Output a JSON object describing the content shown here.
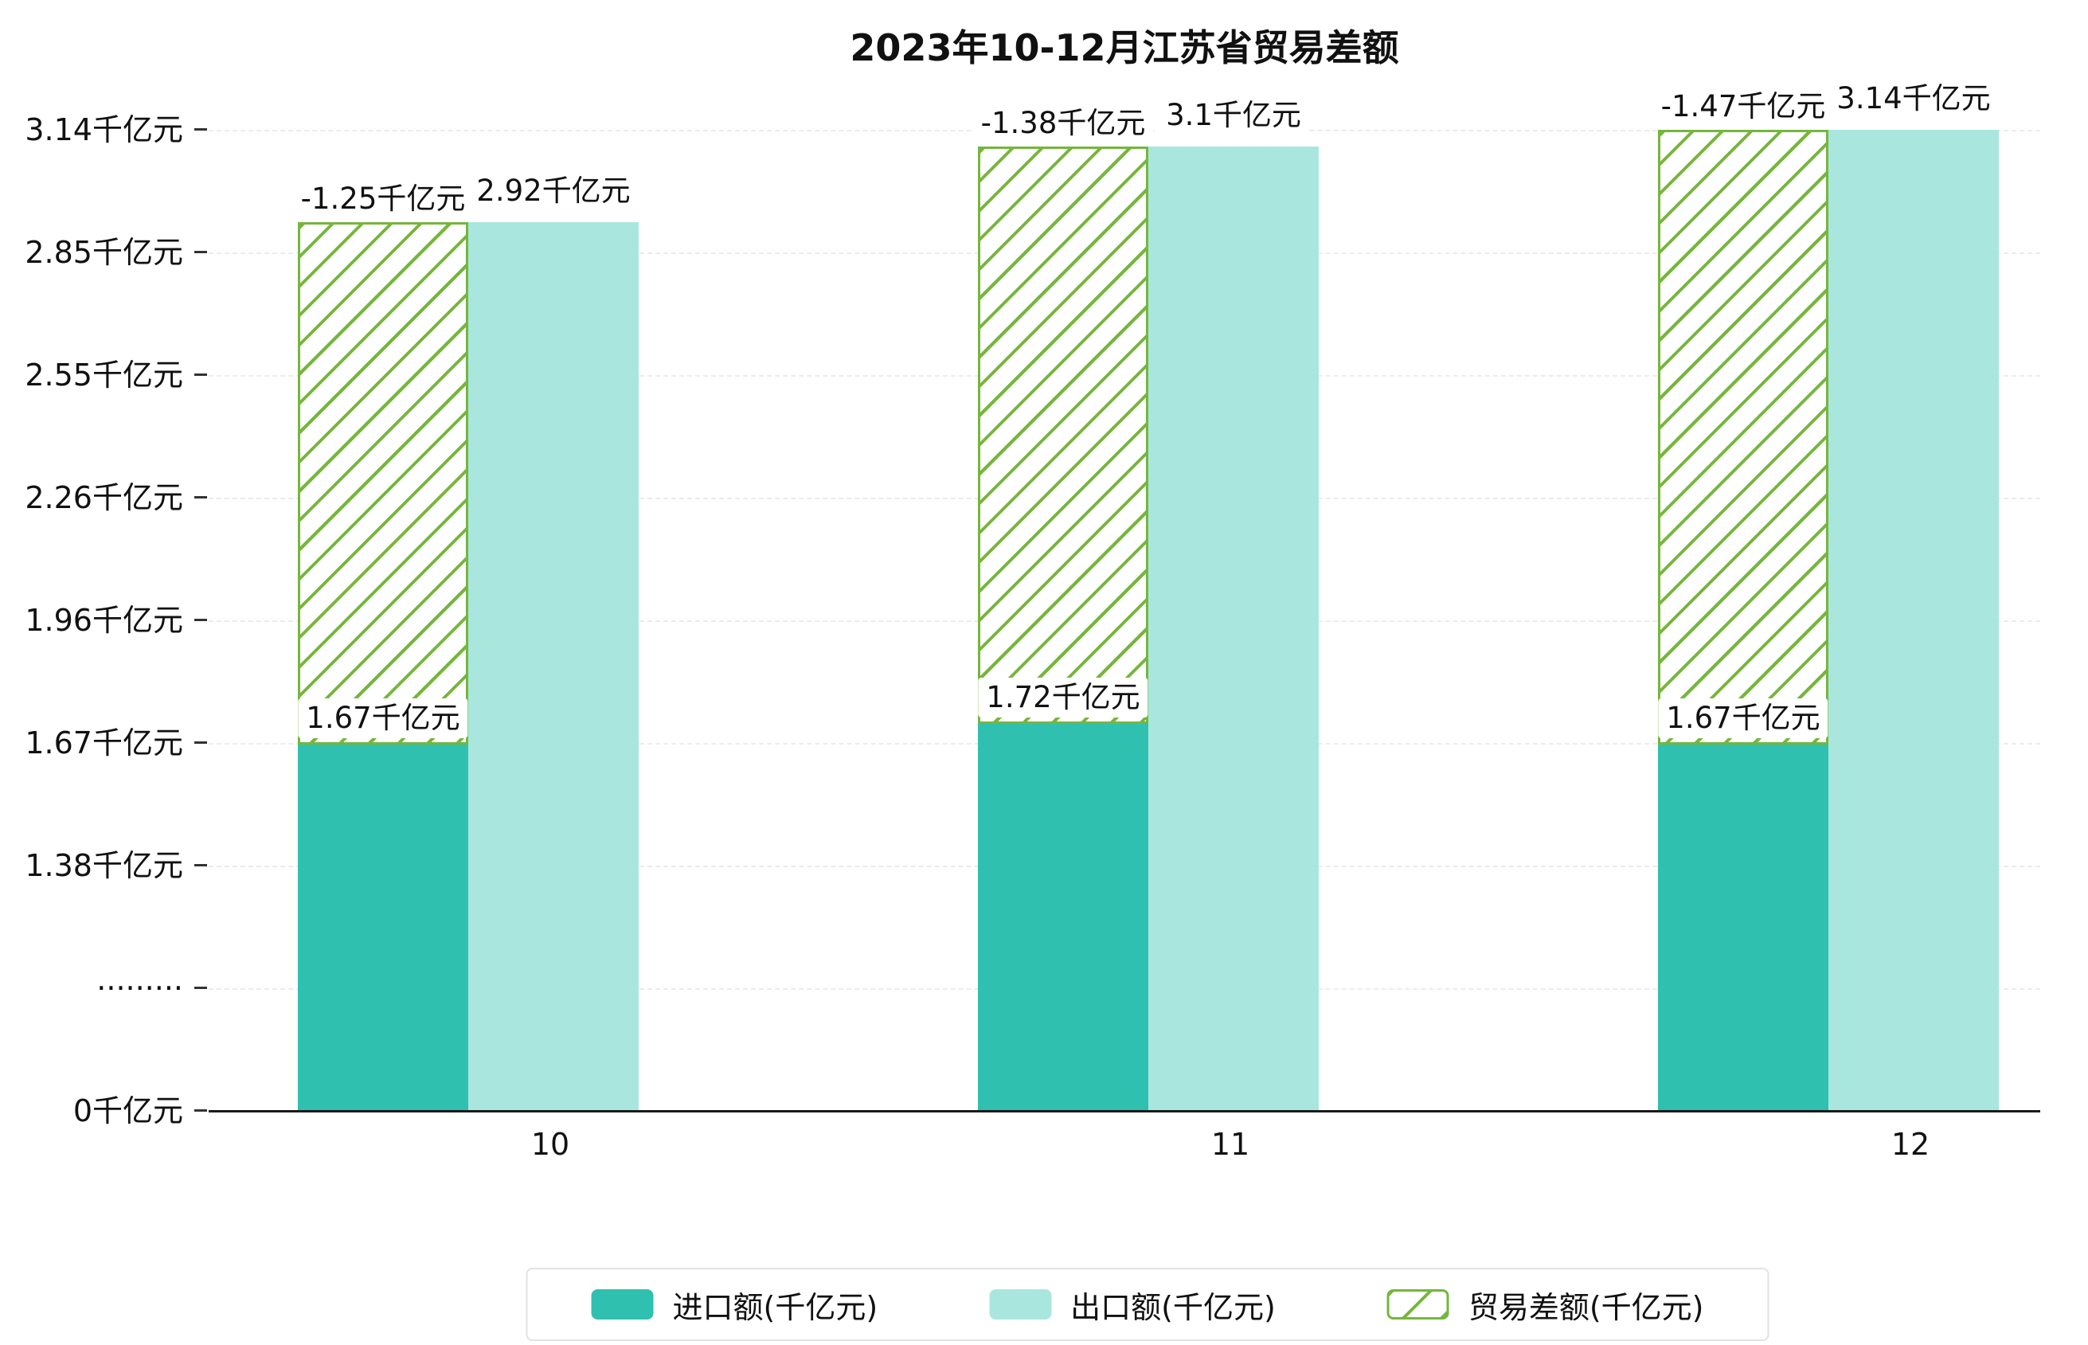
{
  "colors": {
    "import": "#2fc0b0",
    "export": "#a9e7de",
    "hatch": "#76b63c",
    "axis": "#1a1a1a",
    "grid": "#ececec"
  },
  "chart_data": {
    "type": "bar",
    "title": "2023年10-12月江苏省贸易差额",
    "categories": [
      "10",
      "11",
      "12"
    ],
    "series": [
      {
        "name": "进口额(千亿元)",
        "role": "import",
        "values": [
          1.67,
          1.72,
          1.67
        ],
        "labels": [
          "1.67千亿元",
          "1.72千亿元",
          "1.67千亿元"
        ],
        "color": "#2fc0b0",
        "style": "solid"
      },
      {
        "name": "出口额(千亿元)",
        "role": "export",
        "values": [
          2.92,
          3.1,
          3.14
        ],
        "labels": [
          "2.92千亿元",
          "3.1千亿元",
          "3.14千亿元"
        ],
        "color": "#a9e7de",
        "style": "solid"
      },
      {
        "name": "贸易差额(千亿元)",
        "role": "trade-balance",
        "values": [
          -1.25,
          -1.38,
          -1.47
        ],
        "labels": [
          "-1.25千亿元",
          "-1.38千亿元",
          "-1.47千亿元"
        ],
        "color": "#76b63c",
        "style": "hatched",
        "render": "stacked-between-import-and-export"
      }
    ],
    "y_ticks": [
      "0千亿元",
      "·········",
      "1.38千亿元",
      "1.67千亿元",
      "1.96千亿元",
      "2.26千亿元",
      "2.55千亿元",
      "2.85千亿元",
      "3.14千亿元"
    ],
    "y_axis_break": true,
    "ylim_visible": [
      0,
      3.14
    ],
    "grid": true,
    "legend_position": "bottom"
  },
  "legend": {
    "items": [
      {
        "key": "import",
        "label": "进口额(千亿元)",
        "swatch": "sw-import"
      },
      {
        "key": "export",
        "label": "出口额(千亿元)",
        "swatch": "sw-export"
      },
      {
        "key": "balance",
        "label": "贸易差额(千亿元)",
        "swatch": "sw-hatch"
      }
    ]
  }
}
